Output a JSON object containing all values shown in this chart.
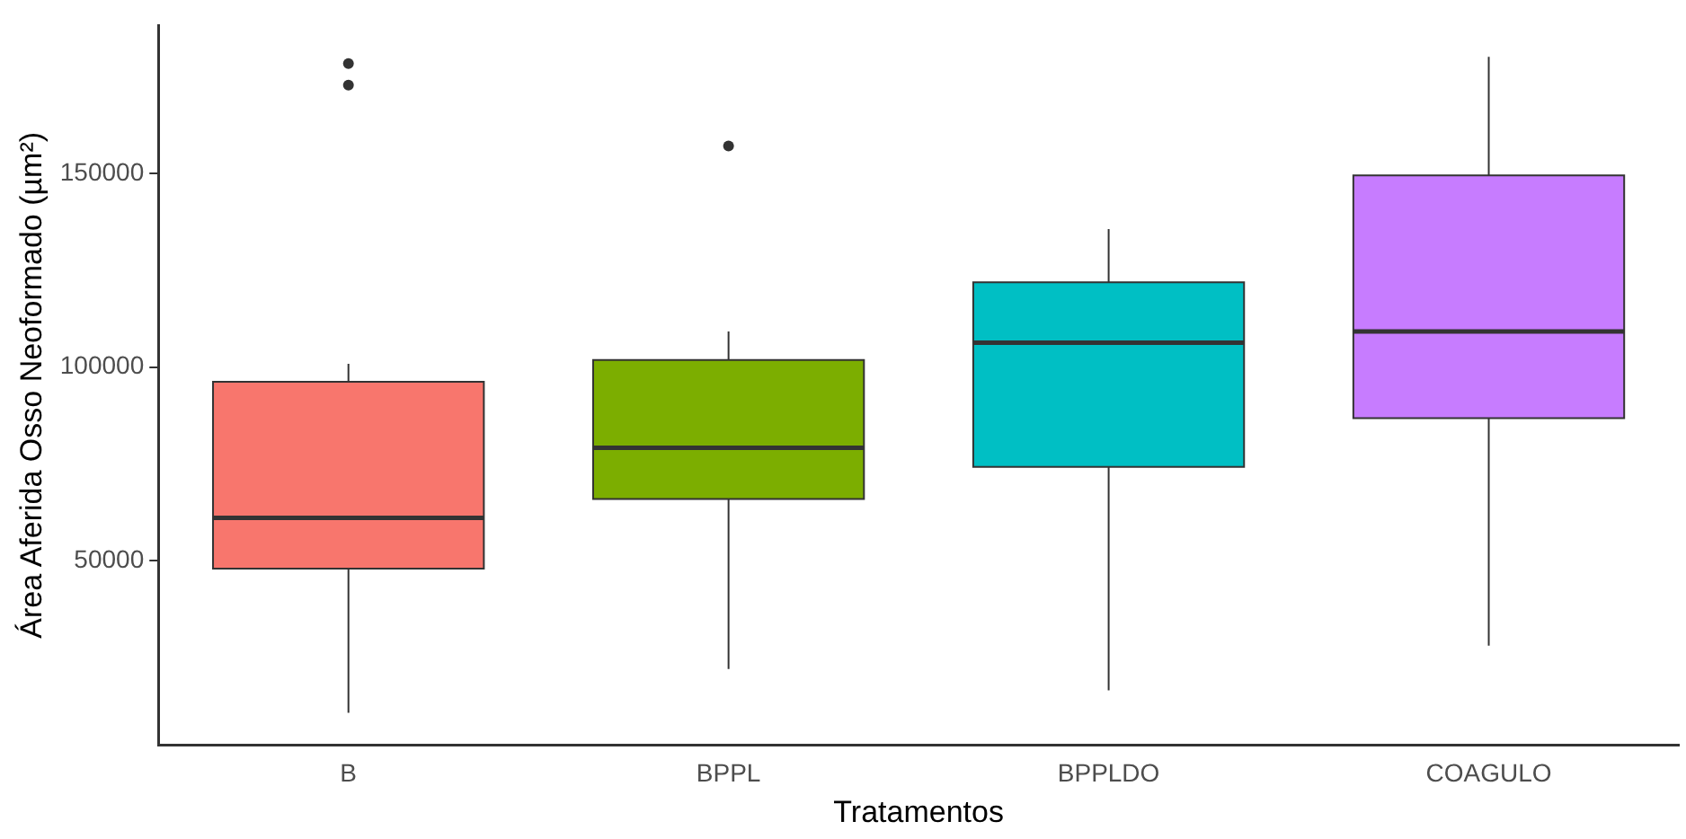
{
  "chart_data": {
    "type": "box",
    "xlabel": "Tratamentos",
    "ylabel": "Área Aferida Osso Neoformado (µm²)",
    "categories": [
      "B",
      "BPPL",
      "BPPLDO",
      "COAGULO"
    ],
    "colors": [
      "#f8766d",
      "#7cae00",
      "#00bfc4",
      "#c77cff"
    ],
    "boxes": [
      {
        "low": 10700,
        "q1": 47900,
        "median": 61000,
        "q3": 96200,
        "high": 100800,
        "outliers": [
          172800,
          178400
        ]
      },
      {
        "low": 22000,
        "q1": 65900,
        "median": 79100,
        "q3": 101800,
        "high": 109200,
        "outliers": [
          157100
        ]
      },
      {
        "low": 16500,
        "q1": 74200,
        "median": 106300,
        "q3": 121900,
        "high": 135600
      },
      {
        "low": 28000,
        "q1": 86800,
        "median": 109200,
        "q3": 149500,
        "high": 180100
      }
    ],
    "ylim": [
      2300,
      188300
    ],
    "yticks": [
      50000,
      100000,
      150000
    ],
    "grid": false,
    "legend": false
  }
}
